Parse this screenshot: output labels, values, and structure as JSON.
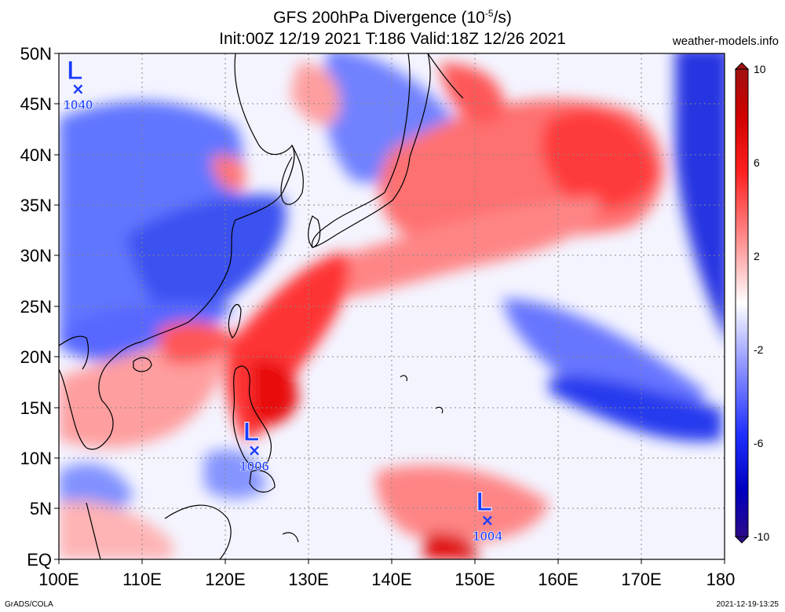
{
  "header": {
    "title_main": "GFS 200hPa Divergence (10",
    "title_exp": "-5",
    "title_unit": "/s)",
    "subtitle": "Init:00Z 12/19 2021 T:186 Valid:18Z 12/26 2021",
    "site": "weather-models.info"
  },
  "footer": {
    "credit": "GrADS/COLA",
    "timestamp": "2021-12-19-13:25"
  },
  "map": {
    "lon_labels": [
      "100E",
      "110E",
      "120E",
      "130E",
      "140E",
      "150E",
      "160E",
      "170E",
      "180"
    ],
    "lat_labels": [
      "50N",
      "45N",
      "40N",
      "35N",
      "30N",
      "25N",
      "20N",
      "15N",
      "10N",
      "5N",
      "EQ"
    ],
    "lows": [
      {
        "letter": "L",
        "value": "1040",
        "lon": 102.3,
        "lat": 46.5
      },
      {
        "letter": "L",
        "value": "1006",
        "lon": 123.5,
        "lat": 10.8
      },
      {
        "letter": "L",
        "value": "1004",
        "lon": 151.5,
        "lat": 3.9
      }
    ]
  },
  "colorbar": {
    "labels": [
      "10",
      "6",
      "2",
      "-2",
      "-6",
      "-10"
    ],
    "colors": [
      "#a01010",
      "#e00000",
      "#ff6060",
      "#ffd0d0",
      "#ffffff",
      "#d0d0ff",
      "#6060ff",
      "#0000e0",
      "#2a0a8a"
    ]
  },
  "colors": {
    "positive": "#ff2020",
    "negative": "#2030ff",
    "low_marker": "#1a3cff"
  }
}
